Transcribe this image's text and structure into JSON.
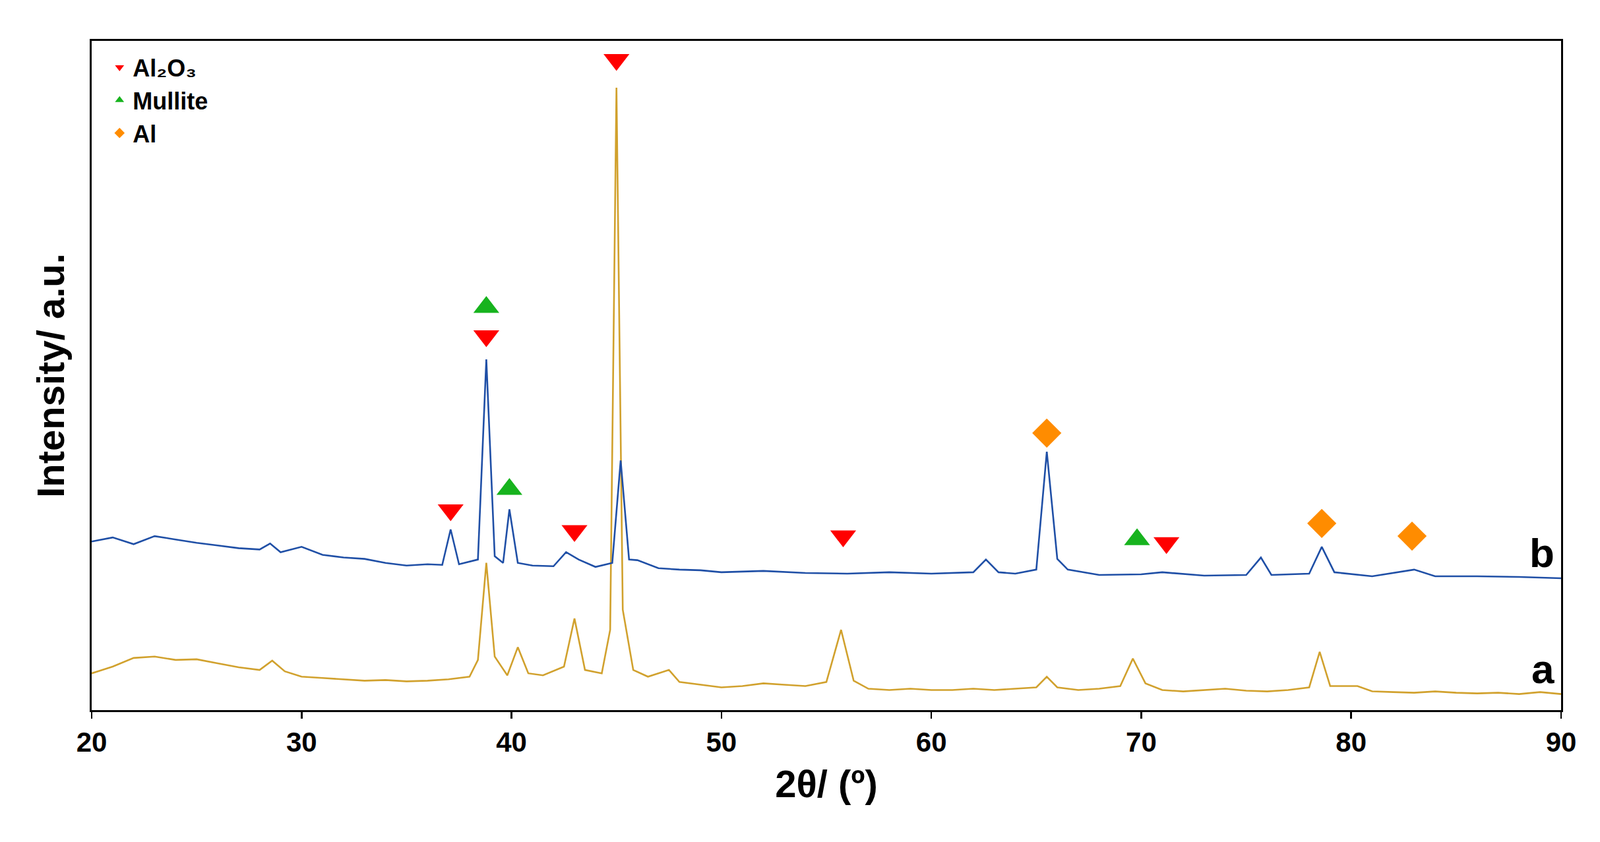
{
  "chart_data": {
    "type": "line",
    "x_label": "2θ/ (º)",
    "y_label": "Intensity/ a.u.",
    "xlim": [
      20,
      90
    ],
    "xticks": [
      20,
      30,
      40,
      50,
      60,
      70,
      80,
      90
    ],
    "ylim": [
      0,
      100
    ],
    "tick_labels": "x",
    "grid": false,
    "legend": "upper left",
    "series": [
      {
        "name": "a",
        "type": "line",
        "color": "#d1a12d",
        "x": [
          20,
          21,
          22,
          23,
          24,
          25,
          26,
          27,
          28,
          28.6,
          29.2,
          30,
          31,
          32,
          33,
          34,
          35,
          36,
          37,
          38,
          38.4,
          38.8,
          39.2,
          39.8,
          40.3,
          40.8,
          41.5,
          42.5,
          43.0,
          43.5,
          44.3,
          44.7,
          45.0,
          45.3,
          45.8,
          46.5,
          47.5,
          48,
          49,
          50,
          51,
          52,
          53,
          54,
          55,
          55.7,
          56.3,
          57,
          58,
          59,
          60,
          61,
          62,
          63,
          64,
          65,
          65.5,
          66,
          67,
          68,
          69,
          69.6,
          70.2,
          71,
          72,
          73,
          74,
          75,
          76,
          77,
          78,
          78.5,
          79,
          80.3,
          81,
          82,
          83,
          84,
          85,
          86,
          87,
          88,
          89,
          90
        ],
        "values": [
          5.5,
          6.5,
          7.8,
          8.0,
          7.5,
          7.6,
          7.0,
          6.4,
          6.0,
          7.4,
          5.8,
          5.0,
          4.8,
          4.6,
          4.4,
          4.5,
          4.3,
          4.4,
          4.6,
          5.0,
          7.5,
          22,
          8,
          5.2,
          9.4,
          5.5,
          5.2,
          6.5,
          13.7,
          6.0,
          5.5,
          12,
          93,
          15,
          6.0,
          5.0,
          6.0,
          4.2,
          3.8,
          3.4,
          3.6,
          4.0,
          3.8,
          3.6,
          4.2,
          12,
          4.4,
          3.2,
          3.0,
          3.2,
          3.0,
          3.0,
          3.2,
          3.0,
          3.2,
          3.4,
          5.0,
          3.4,
          3.0,
          3.2,
          3.6,
          7.7,
          4.0,
          3.0,
          2.8,
          3.0,
          3.2,
          2.9,
          2.8,
          3.0,
          3.4,
          8.7,
          3.6,
          3.6,
          2.8,
          2.7,
          2.6,
          2.8,
          2.6,
          2.5,
          2.6,
          2.4,
          2.7,
          2.4
        ]
      },
      {
        "name": "b",
        "type": "line",
        "color": "#1f4fa6",
        "x": [
          20,
          21,
          22,
          23,
          24,
          25,
          26,
          27,
          28,
          28.5,
          29,
          30,
          31,
          32,
          33,
          34,
          35,
          36,
          36.7,
          37.1,
          37.5,
          38.4,
          38.8,
          39.2,
          39.6,
          39.9,
          40.3,
          41,
          42,
          42.6,
          43.2,
          44,
          44.8,
          45.2,
          45.6,
          46,
          47,
          48,
          49,
          50,
          52,
          54,
          56,
          58,
          60,
          62,
          62.6,
          63.2,
          64,
          65,
          65.5,
          66,
          66.5,
          68,
          70,
          71,
          73,
          75,
          75.7,
          76.2,
          78,
          78.6,
          79.2,
          81,
          83,
          84,
          86,
          88,
          90
        ],
        "values": [
          25.2,
          25.8,
          24.8,
          26.0,
          25.5,
          25.0,
          24.6,
          24.2,
          24.0,
          24.9,
          23.6,
          24.4,
          23.2,
          22.8,
          22.6,
          22.0,
          21.6,
          21.8,
          21.7,
          27,
          21.8,
          22.5,
          52.4,
          23,
          22,
          30,
          22,
          21.6,
          21.5,
          23.6,
          22.5,
          21.4,
          22,
          37.3,
          22.5,
          22.4,
          21.2,
          21.0,
          20.9,
          20.6,
          20.8,
          20.5,
          20.4,
          20.6,
          20.4,
          20.6,
          22.5,
          20.6,
          20.4,
          21.0,
          38.6,
          22.6,
          21.0,
          20.2,
          20.3,
          20.6,
          20.1,
          20.2,
          22.8,
          20.2,
          20.4,
          24.4,
          20.6,
          20.0,
          21.0,
          20.0,
          20.0,
          19.9,
          19.7
        ]
      },
      {
        "name": "Al₂O₃",
        "type": "scatter",
        "marker": "triangle-down",
        "color": "#ff0000",
        "x": [
          37.1,
          38.8,
          43.0,
          45.0,
          55.8,
          71.2
        ],
        "values": [
          29.9,
          55.9,
          26.8,
          97.2,
          26,
          25
        ]
      },
      {
        "name": "Mullite",
        "type": "scatter",
        "marker": "triangle-up",
        "color": "#17b31e",
        "x": [
          38.8,
          39.9,
          69.8
        ],
        "values": [
          60.2,
          33,
          25.5
        ]
      },
      {
        "name": "Al",
        "type": "scatter",
        "marker": "diamond",
        "color": "#ff8c00",
        "x": [
          65.5,
          78.6,
          82.9
        ],
        "values": [
          41.4,
          27.9,
          26
        ]
      }
    ]
  }
}
